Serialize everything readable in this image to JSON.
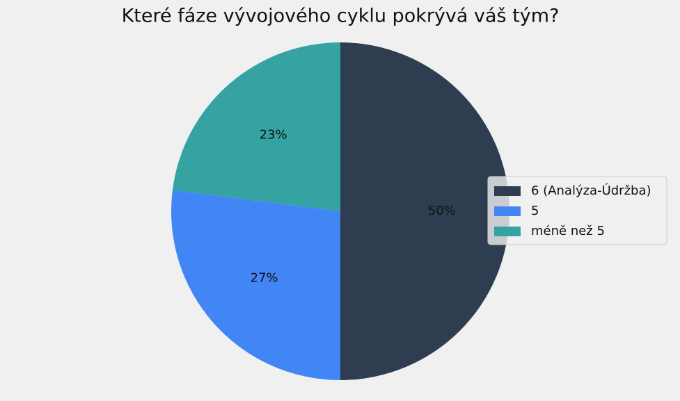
{
  "chart_data": {
    "type": "pie",
    "title": "Které fáze vývojového cyklu pokrývá váš tým?",
    "categories": [
      "6 (Analýza-Údržba)",
      "5",
      "méně než 5"
    ],
    "values": [
      50,
      27,
      23
    ],
    "value_labels": [
      "50%",
      "27%",
      "23%"
    ],
    "colors": [
      "#2e3e50",
      "#4285f4",
      "#36a3a3"
    ],
    "legend": "right"
  }
}
